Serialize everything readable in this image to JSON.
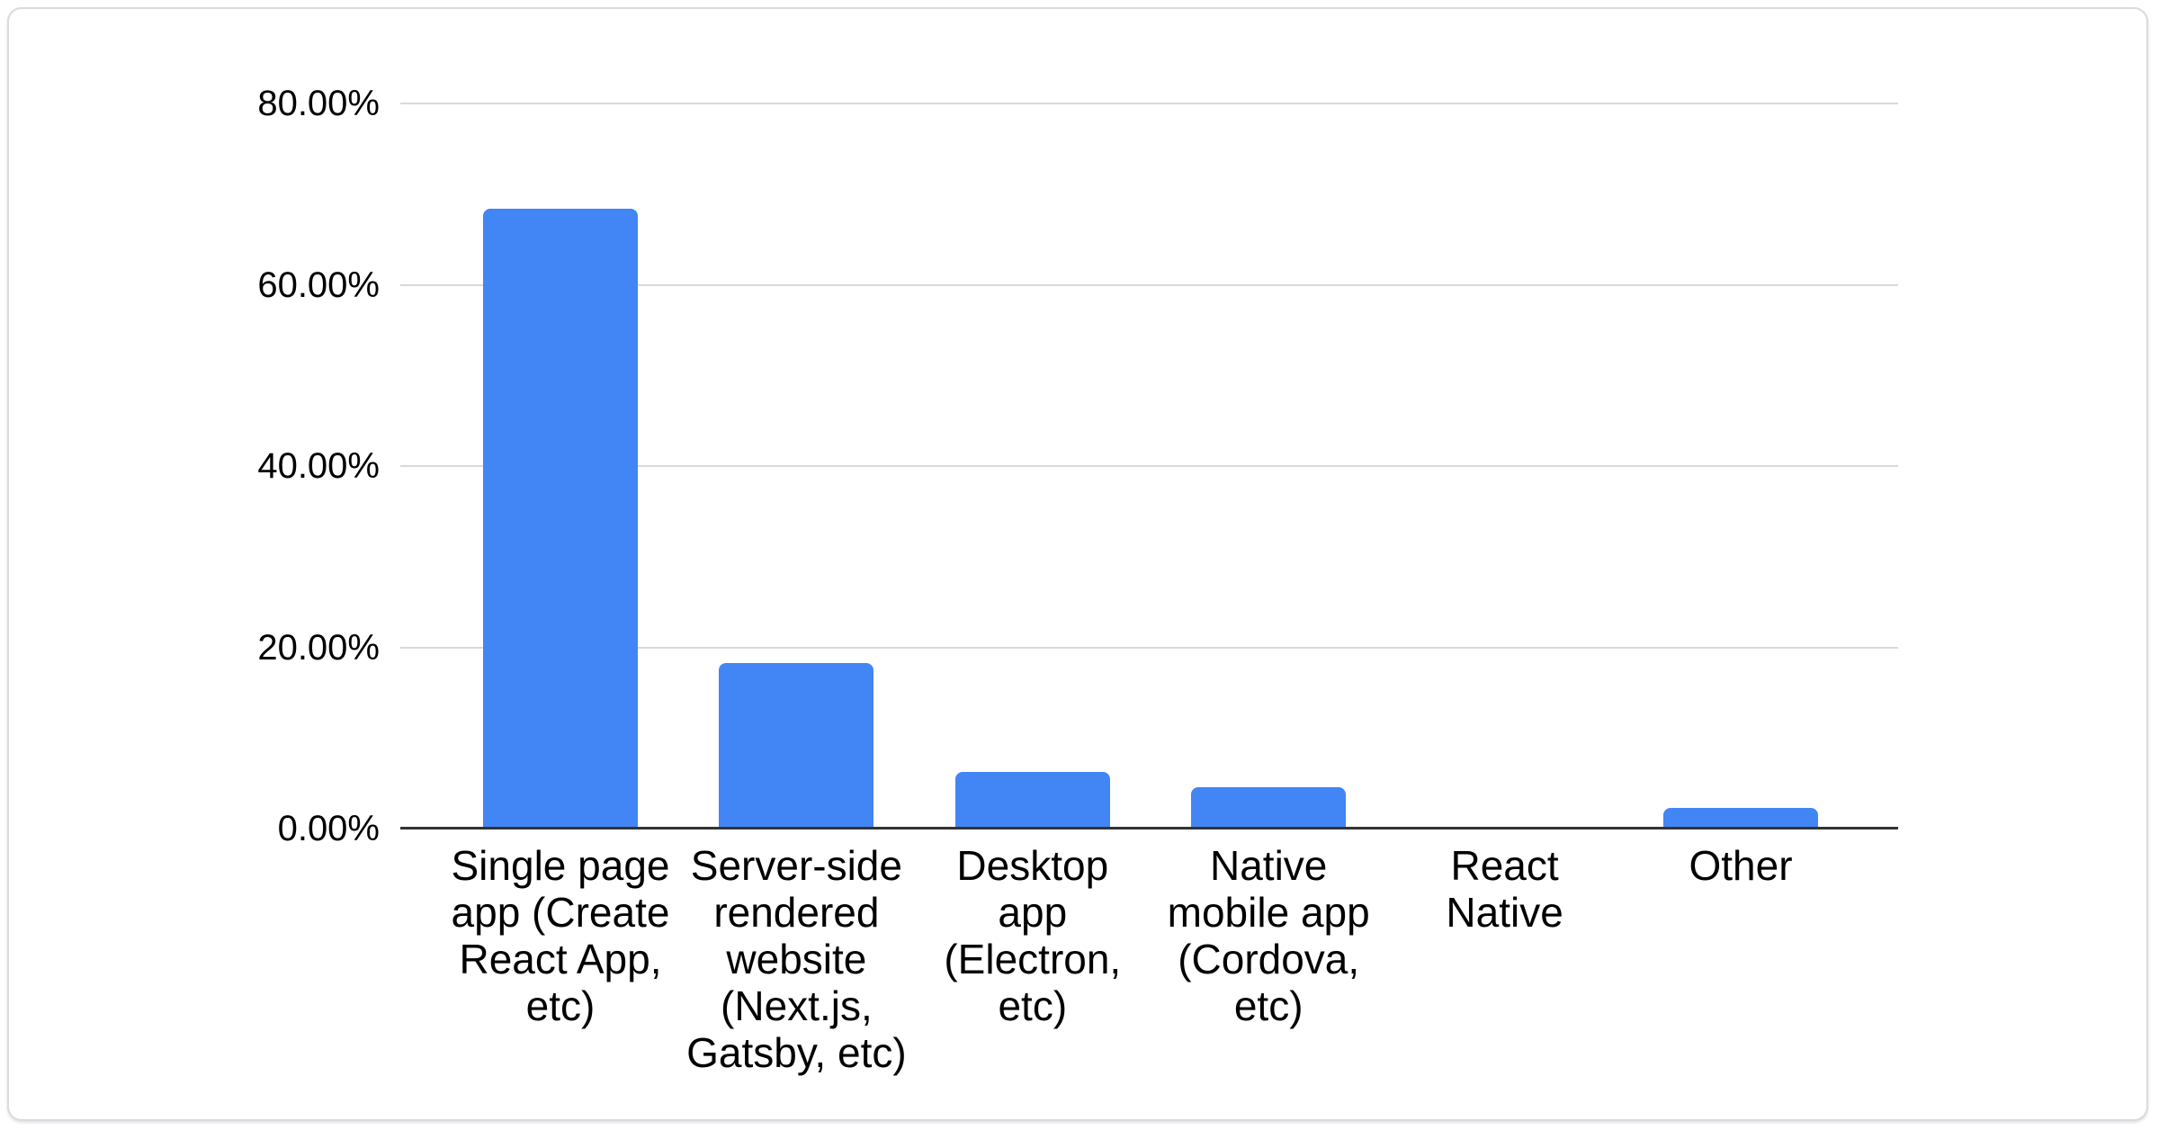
{
  "chart_data": {
    "type": "bar",
    "title": "",
    "xlabel": "",
    "ylabel": "",
    "unit": "percent",
    "categories": [
      "Single page app (Create React App, etc)",
      "Server-side rendered website (Next.js, Gatsby, etc)",
      "Desktop app (Electron, etc)",
      "Native mobile app (Cordova, etc)",
      "React Native",
      "Other"
    ],
    "values": [
      68.4,
      18.3,
      6.3,
      4.6,
      0,
      2.3
    ],
    "y_axis": {
      "min": 0,
      "max": 80,
      "ticks": [
        {
          "value": 80,
          "label": "80.00%"
        },
        {
          "value": 60,
          "label": "60.00%"
        },
        {
          "value": 40,
          "label": "40.00%"
        },
        {
          "value": 20,
          "label": "20.00%"
        },
        {
          "value": 0,
          "label": "0.00%"
        }
      ]
    },
    "grid": true,
    "legend": "none",
    "colors": {
      "bar": "#4285f4",
      "axis_line": "#333333",
      "gridline": "#d9d9d9",
      "text": "#000000",
      "background": "#ffffff",
      "card_border": "#d9dbe0"
    }
  }
}
